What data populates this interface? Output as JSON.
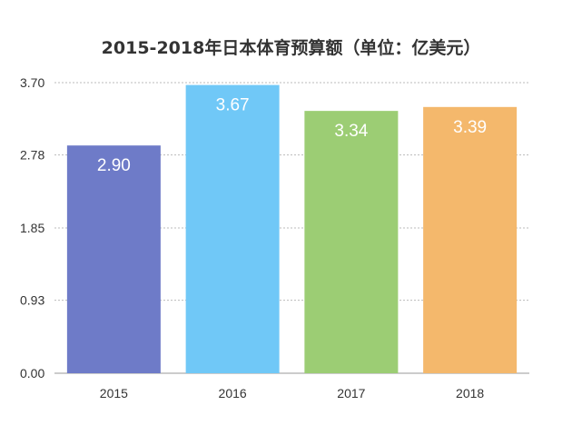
{
  "chart_data": {
    "type": "bar",
    "title": "2015-2018年日本体育预算额（单位：亿美元）",
    "xlabel": "",
    "ylabel": "",
    "categories": [
      "2015",
      "2016",
      "2017",
      "2018"
    ],
    "values": [
      2.9,
      3.67,
      3.34,
      3.39
    ],
    "value_labels": [
      "2.90",
      "3.67",
      "3.34",
      "3.39"
    ],
    "yticks": [
      0.0,
      0.93,
      1.85,
      2.78,
      3.7
    ],
    "ytick_labels": [
      "0.00",
      "0.93",
      "1.85",
      "2.78",
      "3.70"
    ],
    "ylim": [
      0,
      3.7
    ],
    "grid": true,
    "legend": "none",
    "colors": [
      "#6e7bc8",
      "#70c8f7",
      "#9ccd74",
      "#f4b86c"
    ]
  }
}
